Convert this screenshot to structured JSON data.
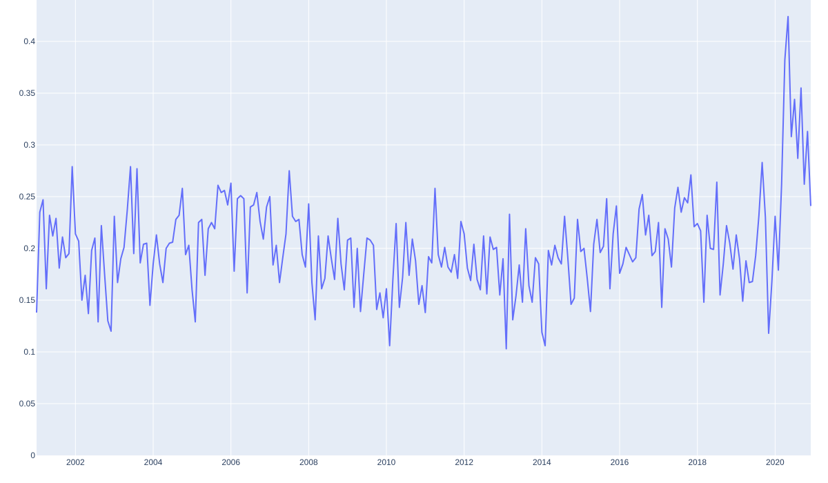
{
  "chart_data": {
    "type": "line",
    "title": "",
    "xlabel": "",
    "ylabel": "",
    "xlim": [
      "2001-01",
      "2020-12"
    ],
    "ylim": [
      0,
      0.44
    ],
    "grid": true,
    "legend": "none",
    "x_ticks": [
      "2002",
      "2004",
      "2006",
      "2008",
      "2010",
      "2012",
      "2014",
      "2016",
      "2018",
      "2020"
    ],
    "y_ticks": [
      "0",
      "0.05",
      "0.1",
      "0.15",
      "0.2",
      "0.25",
      "0.3",
      "0.35",
      "0.4"
    ],
    "colors": {
      "line": "#636efa",
      "plot_bg": "#e5ecf6",
      "grid": "#ffffff",
      "tick_text": "#2a3f5f"
    },
    "series": [
      {
        "x": [
          "2001-01",
          "2001-02",
          "2001-03",
          "2001-04",
          "2001-05",
          "2001-06",
          "2001-07",
          "2001-08",
          "2001-09",
          "2001-10",
          "2001-11",
          "2001-12",
          "2002-01",
          "2002-02",
          "2002-03",
          "2002-04",
          "2002-05",
          "2002-06",
          "2002-07",
          "2002-08",
          "2002-09",
          "2002-10",
          "2002-11",
          "2002-12",
          "2003-01",
          "2003-02",
          "2003-03",
          "2003-04",
          "2003-05",
          "2003-06",
          "2003-07",
          "2003-08",
          "2003-09",
          "2003-10",
          "2003-11",
          "2003-12",
          "2004-01",
          "2004-02",
          "2004-03",
          "2004-04",
          "2004-05",
          "2004-06",
          "2004-07",
          "2004-08",
          "2004-09",
          "2004-10",
          "2004-11",
          "2004-12",
          "2005-01",
          "2005-02",
          "2005-03",
          "2005-04",
          "2005-05",
          "2005-06",
          "2005-07",
          "2005-08",
          "2005-09",
          "2005-10",
          "2005-11",
          "2005-12",
          "2006-01",
          "2006-02",
          "2006-03",
          "2006-04",
          "2006-05",
          "2006-06",
          "2006-07",
          "2006-08",
          "2006-09",
          "2006-10",
          "2006-11",
          "2006-12",
          "2007-01",
          "2007-02",
          "2007-03",
          "2007-04",
          "2007-05",
          "2007-06",
          "2007-07",
          "2007-08",
          "2007-09",
          "2007-10",
          "2007-11",
          "2007-12",
          "2008-01",
          "2008-02",
          "2008-03",
          "2008-04",
          "2008-05",
          "2008-06",
          "2008-07",
          "2008-08",
          "2008-09",
          "2008-10",
          "2008-11",
          "2008-12",
          "2009-01",
          "2009-02",
          "2009-03",
          "2009-04",
          "2009-05",
          "2009-06",
          "2009-07",
          "2009-08",
          "2009-09",
          "2009-10",
          "2009-11",
          "2009-12",
          "2010-01",
          "2010-02",
          "2010-03",
          "2010-04",
          "2010-05",
          "2010-06",
          "2010-07",
          "2010-08",
          "2010-09",
          "2010-10",
          "2010-11",
          "2010-12",
          "2011-01",
          "2011-02",
          "2011-03",
          "2011-04",
          "2011-05",
          "2011-06",
          "2011-07",
          "2011-08",
          "2011-09",
          "2011-10",
          "2011-11",
          "2011-12",
          "2012-01",
          "2012-02",
          "2012-03",
          "2012-04",
          "2012-05",
          "2012-06",
          "2012-07",
          "2012-08",
          "2012-09",
          "2012-10",
          "2012-11",
          "2012-12",
          "2013-01",
          "2013-02",
          "2013-03",
          "2013-04",
          "2013-05",
          "2013-06",
          "2013-07",
          "2013-08",
          "2013-09",
          "2013-10",
          "2013-11",
          "2013-12",
          "2014-01",
          "2014-02",
          "2014-03",
          "2014-04",
          "2014-05",
          "2014-06",
          "2014-07",
          "2014-08",
          "2014-09",
          "2014-10",
          "2014-11",
          "2014-12",
          "2015-01",
          "2015-02",
          "2015-03",
          "2015-04",
          "2015-05",
          "2015-06",
          "2015-07",
          "2015-08",
          "2015-09",
          "2015-10",
          "2015-11",
          "2015-12",
          "2016-01",
          "2016-02",
          "2016-03",
          "2016-04",
          "2016-05",
          "2016-06",
          "2016-07",
          "2016-08",
          "2016-09",
          "2016-10",
          "2016-11",
          "2016-12",
          "2017-01",
          "2017-02",
          "2017-03",
          "2017-04",
          "2017-05",
          "2017-06",
          "2017-07",
          "2017-08",
          "2017-09",
          "2017-10",
          "2017-11",
          "2017-12",
          "2018-01",
          "2018-02",
          "2018-03",
          "2018-04",
          "2018-05",
          "2018-06",
          "2018-07",
          "2018-08",
          "2018-09",
          "2018-10",
          "2018-11",
          "2018-12",
          "2019-01",
          "2019-02",
          "2019-03",
          "2019-04",
          "2019-05",
          "2019-06",
          "2019-07",
          "2019-08",
          "2019-09",
          "2019-10",
          "2019-11",
          "2019-12",
          "2020-01",
          "2020-02",
          "2020-03",
          "2020-04",
          "2020-05",
          "2020-06",
          "2020-07",
          "2020-08",
          "2020-09",
          "2020-10",
          "2020-11",
          "2020-12"
        ],
        "y": [
          0.138,
          0.235,
          0.247,
          0.161,
          0.232,
          0.212,
          0.229,
          0.181,
          0.211,
          0.191,
          0.195,
          0.279,
          0.214,
          0.207,
          0.15,
          0.174,
          0.137,
          0.198,
          0.21,
          0.129,
          0.222,
          0.175,
          0.13,
          0.12,
          0.231,
          0.167,
          0.19,
          0.201,
          0.237,
          0.279,
          0.195,
          0.277,
          0.186,
          0.204,
          0.205,
          0.145,
          0.185,
          0.213,
          0.185,
          0.167,
          0.2,
          0.205,
          0.206,
          0.228,
          0.232,
          0.258,
          0.194,
          0.203,
          0.16,
          0.129,
          0.225,
          0.228,
          0.174,
          0.219,
          0.225,
          0.219,
          0.261,
          0.254,
          0.256,
          0.242,
          0.263,
          0.178,
          0.248,
          0.251,
          0.248,
          0.157,
          0.24,
          0.242,
          0.254,
          0.226,
          0.209,
          0.24,
          0.25,
          0.184,
          0.203,
          0.167,
          0.191,
          0.214,
          0.275,
          0.231,
          0.226,
          0.228,
          0.194,
          0.182,
          0.243,
          0.167,
          0.131,
          0.212,
          0.161,
          0.171,
          0.212,
          0.19,
          0.17,
          0.229,
          0.185,
          0.16,
          0.208,
          0.21,
          0.143,
          0.2,
          0.139,
          0.175,
          0.21,
          0.208,
          0.203,
          0.141,
          0.157,
          0.133,
          0.161,
          0.106,
          0.17,
          0.224,
          0.143,
          0.172,
          0.225,
          0.174,
          0.209,
          0.188,
          0.146,
          0.164,
          0.138,
          0.192,
          0.186,
          0.258,
          0.194,
          0.182,
          0.201,
          0.182,
          0.177,
          0.194,
          0.171,
          0.226,
          0.214,
          0.181,
          0.169,
          0.204,
          0.17,
          0.16,
          0.212,
          0.156,
          0.211,
          0.199,
          0.201,
          0.155,
          0.19,
          0.103,
          0.233,
          0.131,
          0.154,
          0.184,
          0.148,
          0.219,
          0.164,
          0.148,
          0.191,
          0.185,
          0.119,
          0.106,
          0.198,
          0.184,
          0.203,
          0.191,
          0.185,
          0.231,
          0.191,
          0.146,
          0.152,
          0.228,
          0.197,
          0.2,
          0.171,
          0.139,
          0.204,
          0.228,
          0.196,
          0.202,
          0.248,
          0.161,
          0.214,
          0.241,
          0.176,
          0.185,
          0.201,
          0.194,
          0.187,
          0.191,
          0.238,
          0.252,
          0.213,
          0.232,
          0.193,
          0.197,
          0.225,
          0.143,
          0.219,
          0.209,
          0.182,
          0.239,
          0.259,
          0.235,
          0.249,
          0.244,
          0.271,
          0.221,
          0.224,
          0.217,
          0.148,
          0.232,
          0.2,
          0.199,
          0.264,
          0.155,
          0.185,
          0.222,
          0.205,
          0.18,
          0.213,
          0.19,
          0.149,
          0.188,
          0.167,
          0.168,
          0.193,
          0.232,
          0.283,
          0.23,
          0.118,
          0.168,
          0.231,
          0.179,
          0.262,
          0.382,
          0.424,
          0.308,
          0.344,
          0.287,
          0.355,
          0.262,
          0.313,
          0.241
        ]
      }
    ]
  }
}
